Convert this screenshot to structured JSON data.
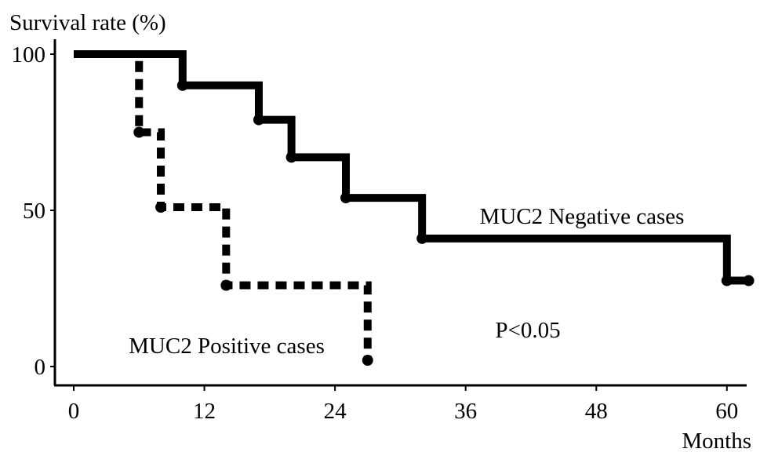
{
  "chart_data": {
    "type": "line",
    "title": "",
    "ylabel": "Survival rate (%)",
    "xlabel": "Months",
    "xlim": [
      0,
      63
    ],
    "ylim": [
      0,
      100
    ],
    "xticks": [
      0,
      12,
      24,
      36,
      48,
      60
    ],
    "yticks": [
      0,
      50,
      100
    ],
    "grid": false,
    "legend": "none",
    "series": [
      {
        "name": "MUC2 Negative cases",
        "style": "solid",
        "color": "#000000",
        "x": [
          0,
          10,
          17,
          20,
          25,
          32,
          60,
          62
        ],
        "y": [
          100,
          90,
          79,
          67,
          54,
          41,
          27.5,
          27.5
        ]
      },
      {
        "name": "MUC2 Positive cases",
        "style": "dashed",
        "color": "#000000",
        "x": [
          0,
          6,
          8,
          14,
          27
        ],
        "y": [
          100,
          75,
          51,
          26,
          2
        ]
      }
    ],
    "annotations": [
      "P<0.05"
    ]
  }
}
